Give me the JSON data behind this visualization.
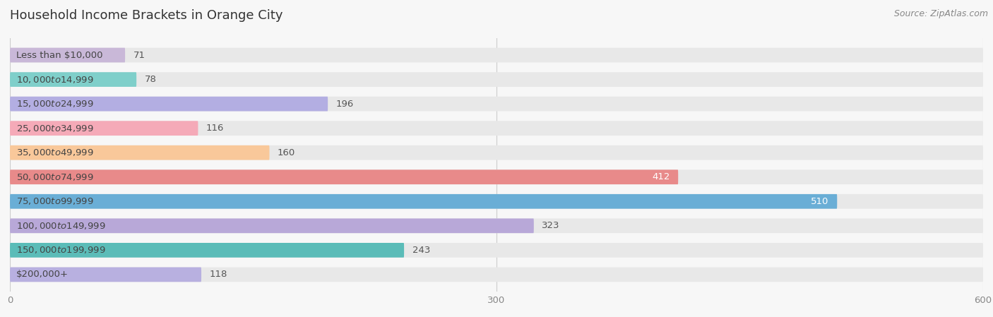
{
  "title": "Household Income Brackets in Orange City",
  "source": "Source: ZipAtlas.com",
  "categories": [
    "Less than $10,000",
    "$10,000 to $14,999",
    "$15,000 to $24,999",
    "$25,000 to $34,999",
    "$35,000 to $49,999",
    "$50,000 to $74,999",
    "$75,000 to $99,999",
    "$100,000 to $149,999",
    "$150,000 to $199,999",
    "$200,000+"
  ],
  "values": [
    71,
    78,
    196,
    116,
    160,
    412,
    510,
    323,
    243,
    118
  ],
  "colors": [
    "#c9b8d8",
    "#7fcfca",
    "#b3aee2",
    "#f5aab8",
    "#f9c89a",
    "#e88a8a",
    "#6aaed6",
    "#b8a8d8",
    "#5bbcb8",
    "#b8b0e0"
  ],
  "xlim": [
    0,
    600
  ],
  "xticks": [
    0,
    300,
    600
  ],
  "background_color": "#f7f7f7",
  "bar_bg_color": "#e8e8e8",
  "title_fontsize": 13,
  "label_fontsize": 9.5,
  "value_fontsize": 9.5,
  "source_fontsize": 9
}
